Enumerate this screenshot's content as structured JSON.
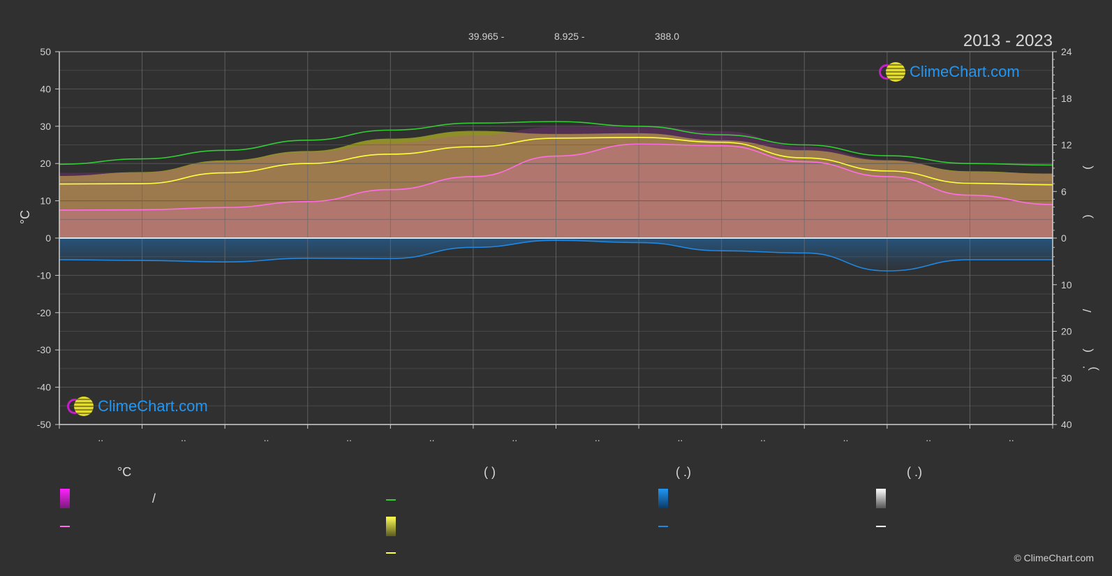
{
  "header": {
    "info_1": "39.965 -",
    "info_2": "8.925 -",
    "info_3": "388.0",
    "years": "2013 - 2023"
  },
  "logo": {
    "text": "ClimeChart.com"
  },
  "copyright": "© ClimeChart.com",
  "colors": {
    "max_temp": "#ffff40",
    "mean_temp": "#ff6ee6",
    "daylight": "#33cc33",
    "precip": "#1e88e5",
    "temp_fill": "#cc33cc",
    "sun_fill": "#b4b428",
    "background": "#303030",
    "grid": "#5a5a5a"
  },
  "legend": {
    "head_temp": "°C",
    "head_sun": "(           )",
    "head_rain": "(   .)",
    "head_snow": "(   .)",
    "slash": "/"
  },
  "chart_data": {
    "type": "line",
    "title": "2013 - 2023",
    "x": [
      0,
      1,
      2,
      3,
      4,
      5,
      6,
      7,
      8,
      9,
      10,
      11,
      12
    ],
    "x_tick_labels": [
      "..",
      "..",
      "..",
      "..",
      "..",
      "..",
      "..",
      "..",
      "..",
      "..",
      "..",
      ".."
    ],
    "ylabel_left": "°C",
    "ylim_left": [
      -50,
      50
    ],
    "yticks_left": [
      50,
      40,
      30,
      20,
      10,
      0,
      -10,
      -20,
      -30,
      -40,
      -50
    ],
    "ylim_right_top": [
      0,
      24
    ],
    "yticks_right_top": [
      24,
      18,
      12,
      6,
      0
    ],
    "ylim_right_bottom": [
      0,
      40
    ],
    "yticks_right_bottom": [
      10,
      20,
      30,
      40
    ],
    "right_axis_marks": [
      "(",
      ")",
      "/",
      "(",
      "·",
      ")"
    ],
    "grid": true,
    "series": [
      {
        "key": "daylight",
        "axis": "right_top",
        "values": [
          9.5,
          10.2,
          11.3,
          12.6,
          13.9,
          14.8,
          15.0,
          14.4,
          13.3,
          12.0,
          10.6,
          9.6,
          9.4
        ]
      },
      {
        "key": "sunshine_fill",
        "axis": "right_top",
        "values": [
          8.0,
          8.5,
          10.0,
          11.2,
          12.8,
          13.8,
          13.4,
          13.5,
          12.6,
          11.3,
          10.0,
          8.6,
          8.3
        ]
      },
      {
        "key": "max_temp",
        "axis": "left",
        "values": [
          14.5,
          14.6,
          17.5,
          20.0,
          22.5,
          24.5,
          26.8,
          27.0,
          25.7,
          21.5,
          18.0,
          14.7,
          14.3
        ]
      },
      {
        "key": "mean_temp",
        "axis": "left",
        "values": [
          7.5,
          7.6,
          8.2,
          9.8,
          13.0,
          16.5,
          22.0,
          25.2,
          24.8,
          20.5,
          16.5,
          11.5,
          9.0
        ]
      },
      {
        "key": "precipitation",
        "axis": "left",
        "values": [
          -5.8,
          -6.0,
          -6.4,
          -5.4,
          -5.5,
          -2.5,
          -0.6,
          -1.2,
          -3.4,
          -4.0,
          -8.8,
          -5.8,
          -5.8
        ]
      }
    ]
  }
}
